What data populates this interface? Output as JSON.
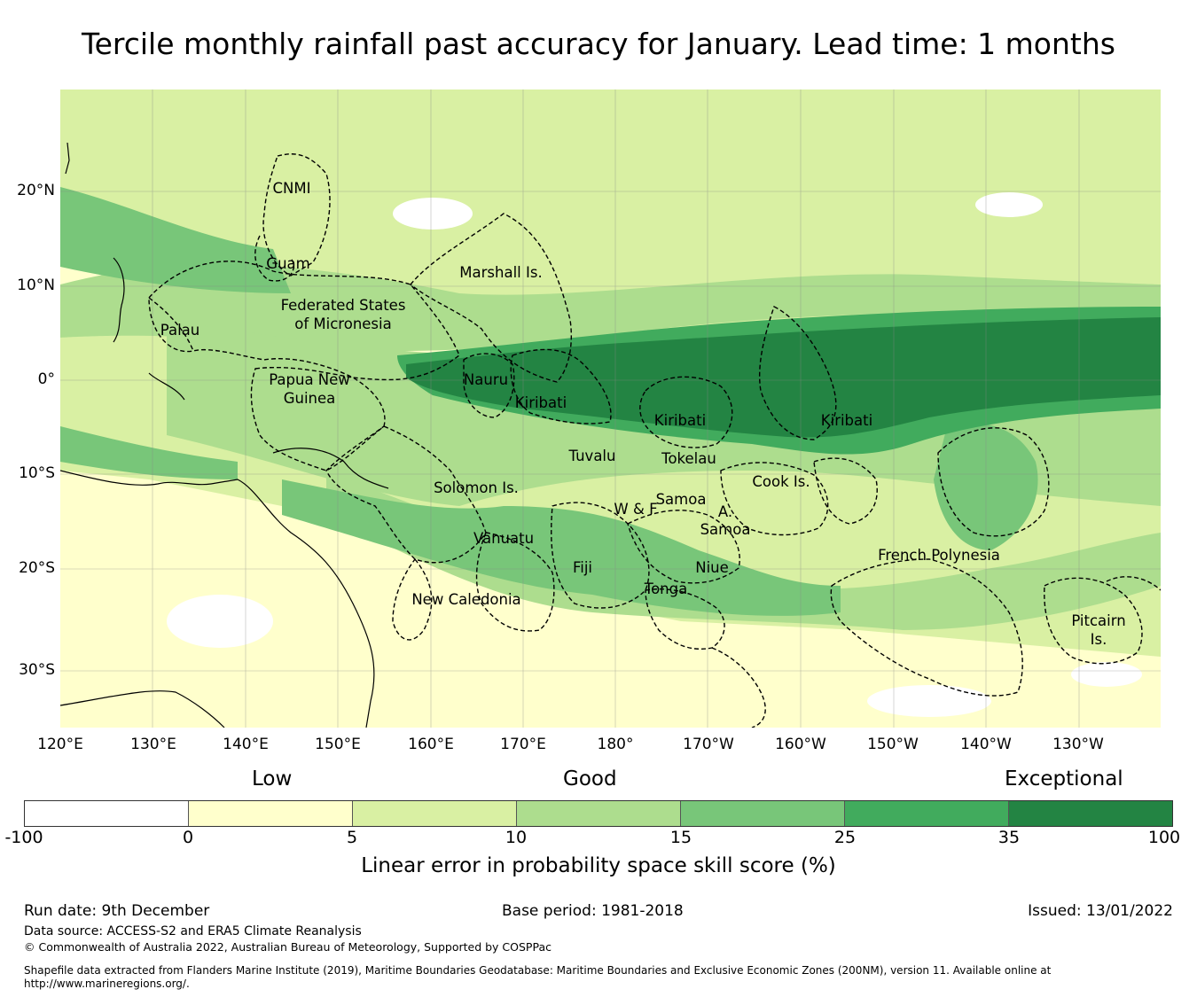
{
  "title": "Tercile monthly rainfall past accuracy for January. Lead time: 1 months",
  "map": {
    "lon_ticks": [
      "120°E",
      "130°E",
      "140°E",
      "150°E",
      "160°E",
      "170°E",
      "180°",
      "170°W",
      "160°W",
      "150°W",
      "140°W",
      "130°W"
    ],
    "lat_ticks": [
      "20°N",
      "10°N",
      "0°",
      "10°S",
      "20°S",
      "30°S"
    ],
    "regions": [
      "CNMI",
      "Guam",
      "Marshall Is.",
      "Federated States",
      "of Micronesia",
      "Palau",
      "Papua New",
      "Guinea",
      "Nauru",
      "Kiribati",
      "Kiribati",
      "Kiribati",
      "Tuvalu",
      "Tokelau",
      "Solomon Is.",
      "Samoa",
      "W & F",
      "A.",
      "Samoa",
      "Cook Is.",
      "Vanuatu",
      "Fiji",
      "Niue",
      "Tonga",
      "New Caledonia",
      "French Polynesia",
      "Pitcairn",
      "Is."
    ]
  },
  "legend": {
    "categories": [
      "Low",
      "Good",
      "Exceptional"
    ],
    "ticks": [
      "-100",
      "0",
      "5",
      "10",
      "15",
      "25",
      "35",
      "100"
    ],
    "colors": [
      "#ffffff",
      "#ffffcc",
      "#d9f0a3",
      "#addd8e",
      "#78c679",
      "#41ab5d",
      "#238443"
    ],
    "title": "Linear error in probability space skill score (%)"
  },
  "footer": {
    "run_date": "Run date: 9th December",
    "base_period": "Base period: 1981-2018",
    "issued": "Issued: 13/01/2022",
    "data_source": "Data source: ACCESS-S2 and ERA5 Climate Reanalysis",
    "copyright": "© Commonwealth of Australia 2022, Australian Bureau of Meteorology, Supported by COSPPac",
    "shapefile_line1": "Shapefile data extracted from Flanders Marine Institute (2019), Maritime Boundaries Geodatabase: Maritime Boundaries and Exclusive Economic Zones (200NM), version 11. Available online at",
    "shapefile_line2": "http://www.marineregions.org/."
  }
}
